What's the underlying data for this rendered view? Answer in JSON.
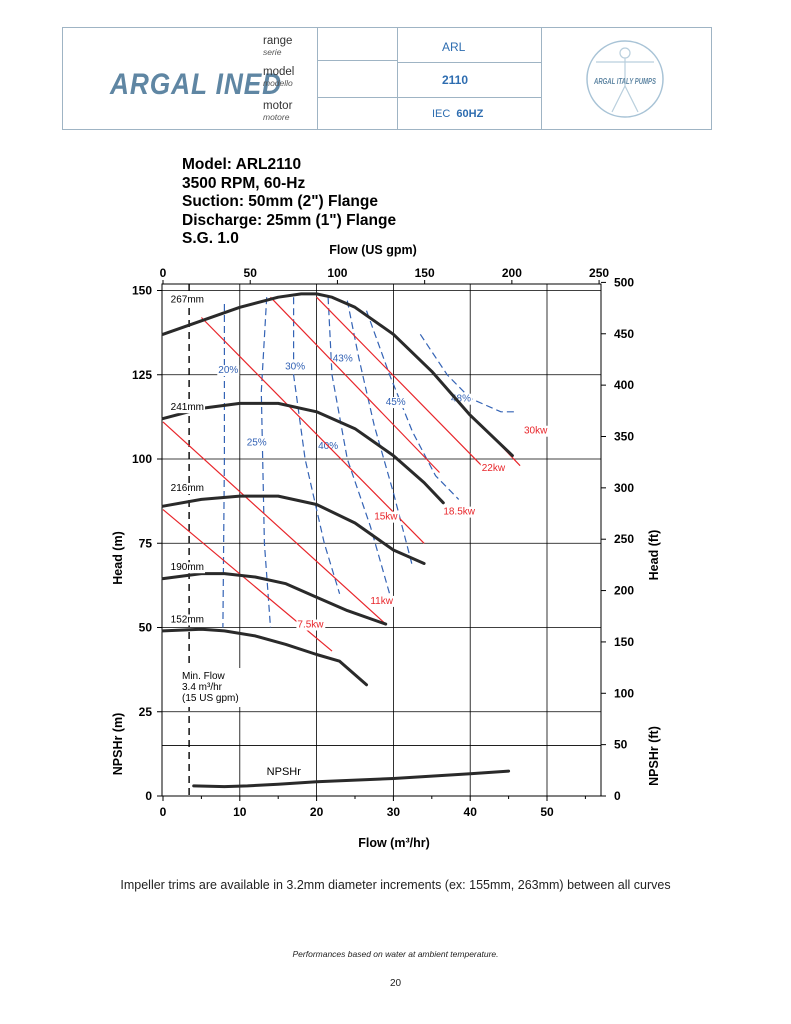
{
  "header": {
    "company_logo_text": "ARGAL INED",
    "range_label": "range",
    "range_label_it": "serie",
    "range_value": "ARL",
    "model_label": "model",
    "model_label_it": "modello",
    "model_value": "2110",
    "motor_label": "motor",
    "motor_label_it": "motore",
    "motor_value_prefix": "IEC",
    "motor_value": "60HZ",
    "brand_logo_text": "ARGAL ITALY PUMPS"
  },
  "info_lines": [
    "Model: ARL2110",
    "3500 RPM, 60-Hz",
    "Suction: 50mm (2\") Flange",
    "Discharge: 25mm (1\") Flange",
    "S.G. 1.0"
  ],
  "chart_data": {
    "type": "line",
    "x_top_label": "Flow (US gpm)",
    "x_top_ticks": [
      "0",
      "50",
      "100",
      "150",
      "200",
      "250"
    ],
    "x_bottom_label": "Flow (m³/hr)",
    "x_bottom_ticks": [
      "0",
      "10",
      "20",
      "30",
      "40",
      "50"
    ],
    "y_left_label": "Head (m)",
    "y_left_ticks": [
      "0",
      "25",
      "50",
      "75",
      "100",
      "125",
      "150"
    ],
    "y_left_lower_label": "NPSHr (m)",
    "y_right_label": "Head (ft)",
    "y_right_lower_label": "NPSHr (ft)",
    "y_right_ticks": [
      "0",
      "50",
      "100",
      "150",
      "200",
      "250",
      "300",
      "350",
      "400",
      "450",
      "500"
    ],
    "xlim": [
      0,
      57.3
    ],
    "ylim": [
      0,
      152
    ],
    "grid": true,
    "impeller_curves": [
      {
        "name": "267mm",
        "x": [
          0,
          5,
          10,
          15,
          18,
          20,
          22,
          25,
          30,
          35,
          40,
          45.5
        ],
        "y": [
          137,
          141,
          145,
          148,
          149,
          149,
          148,
          145,
          137,
          126,
          113,
          101
        ]
      },
      {
        "name": "241mm",
        "x": [
          0,
          5,
          10,
          15,
          20,
          25,
          30,
          34,
          36.5
        ],
        "y": [
          112,
          115,
          116.5,
          116.5,
          114,
          109,
          101,
          93,
          87
        ]
      },
      {
        "name": "216mm",
        "x": [
          0,
          5,
          10,
          15,
          20,
          25,
          30,
          34
        ],
        "y": [
          86,
          88,
          89,
          89,
          86.5,
          81,
          73,
          69
        ]
      },
      {
        "name": "190mm",
        "x": [
          0,
          5,
          8,
          12,
          16,
          20,
          24,
          29
        ],
        "y": [
          64.5,
          66,
          66,
          65,
          63,
          59,
          55,
          51
        ]
      },
      {
        "name": "152mm",
        "x": [
          0,
          5,
          8,
          12,
          16,
          20,
          23,
          26.5
        ],
        "y": [
          49,
          49.5,
          49,
          47.5,
          45,
          42,
          40,
          33
        ]
      }
    ],
    "power_lines": [
      {
        "name": "7.5kw",
        "x": [
          0,
          22
        ],
        "y": [
          85,
          43
        ]
      },
      {
        "name": "11kw",
        "x": [
          0,
          29
        ],
        "y": [
          111,
          51
        ]
      },
      {
        "name": "15kw",
        "x": [
          5,
          34
        ],
        "y": [
          142,
          75
        ]
      },
      {
        "name": "18.5kw",
        "x": [
          14,
          36
        ],
        "y": [
          148,
          96
        ]
      },
      {
        "name": "22kw",
        "x": [
          20,
          41.5
        ],
        "y": [
          148,
          98
        ]
      },
      {
        "name": "30kw",
        "x": [
          44,
          46.5
        ],
        "y": [
          104,
          98
        ]
      }
    ],
    "efficiency_lines": [
      {
        "name": "20%",
        "x": [
          8,
          8,
          7.8
        ],
        "y": [
          146,
          100,
          50
        ]
      },
      {
        "name": "25%",
        "x": [
          13.5,
          12.8,
          13.2,
          14
        ],
        "y": [
          148,
          120,
          75,
          50
        ]
      },
      {
        "name": "30%",
        "x": [
          17,
          17,
          18.5,
          21,
          23
        ],
        "y": [
          148,
          125,
          100,
          75,
          60
        ]
      },
      {
        "name": "40%",
        "x": [
          21.5,
          22,
          24,
          27,
          29.5
        ],
        "y": [
          148,
          125,
          100,
          80,
          60
        ]
      },
      {
        "name": "43%",
        "x": [
          24,
          25.5,
          27.5,
          30,
          32.5
        ],
        "y": [
          147,
          130,
          110,
          90,
          68
        ]
      },
      {
        "name": "45%",
        "x": [
          26.5,
          29.5,
          32.5,
          35.5,
          38.5
        ],
        "y": [
          144,
          125,
          108,
          95,
          88
        ]
      },
      {
        "name": "48%",
        "x": [
          33.5,
          37,
          40,
          42,
          44,
          46
        ],
        "y": [
          137,
          125,
          118,
          116,
          114,
          114
        ]
      }
    ],
    "npshr": {
      "name": "NPSHr",
      "x": [
        4,
        8,
        11,
        15,
        20,
        30,
        40,
        45
      ],
      "y": [
        3,
        2.8,
        3,
        3.5,
        4.2,
        5.2,
        6.6,
        7.4
      ]
    },
    "min_flow": {
      "x": 3.4,
      "label_lines": [
        "Min. Flow",
        "3.4 m³/hr",
        "(15 US gpm)"
      ]
    }
  },
  "footer": {
    "trims_note": "Impeller trims are available in 3.2mm diameter increments (ex: 155mm, 263mm) between all curves",
    "performance_note": "Performances based on water at ambient temperature.",
    "page_number": "20"
  }
}
